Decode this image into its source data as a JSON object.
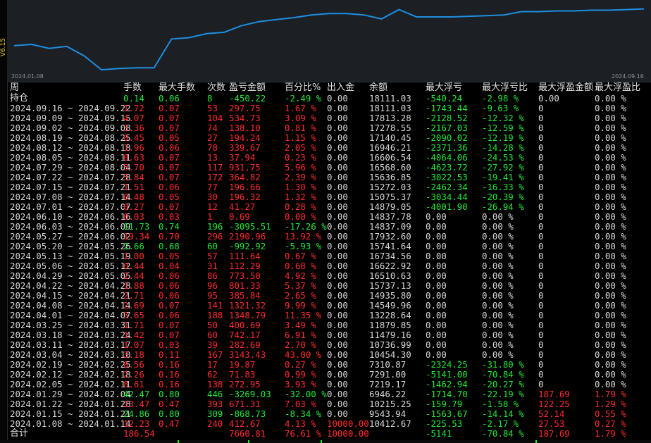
{
  "sidebar": {
    "label": "V6.15"
  },
  "chart": {
    "start_date": "2024.01.08",
    "end_date": "2024.09.16",
    "line_color": "#1e8fe0",
    "values": [
      0.38,
      0.4,
      0.34,
      0.37,
      0.23,
      0.02,
      0.04,
      0.05,
      0.05,
      0.48,
      0.5,
      0.56,
      0.58,
      0.68,
      0.74,
      0.77,
      0.8,
      0.84,
      0.86,
      0.86,
      0.84,
      0.78,
      0.92,
      0.81,
      0.81,
      0.81,
      0.82,
      0.83,
      0.84,
      0.89,
      0.89,
      0.9,
      0.9,
      0.91,
      0.91,
      0.92,
      0.93
    ]
  },
  "headers": [
    "周",
    "手数",
    "最大手数",
    "次数",
    "盈亏金额",
    "百分比%",
    "出入金",
    "余额",
    "最大浮亏",
    "最大浮亏比",
    "最大浮盈金额",
    "最大浮盈比"
  ],
  "holding": {
    "label": "持仓",
    "cells": [
      "0.14",
      "0.06",
      "8",
      "-450.22",
      "-2.49 %",
      "0.00",
      "18111.03",
      "-540.24",
      "-2.98 %",
      "0.00",
      "0.00 %"
    ],
    "colors": [
      "neg",
      "neg",
      "neg",
      "neg",
      "neg",
      "neu",
      "neu",
      "neg",
      "neg",
      "neu",
      "neu"
    ]
  },
  "rows": [
    {
      "week": "2024.09.16 ~ 2024.09.22",
      "cells": [
        "1.72",
        "0.07",
        "53",
        "297.75",
        "1.67 %",
        "0.00",
        "18111.03",
        "-1743.44",
        "-9.63 %",
        "0",
        "0.00 %"
      ],
      "tone": "pos",
      "ff": "neg"
    },
    {
      "week": "2024.09.09 ~ 2024.09.15",
      "cells": [
        "4.07",
        "0.07",
        "104",
        "534.73",
        "3.09 %",
        "0.00",
        "17813.28",
        "-2128.52",
        "-12.32 %",
        "0",
        "0.00 %"
      ],
      "tone": "pos",
      "ff": "neg"
    },
    {
      "week": "2024.09.02 ~ 2024.09.08",
      "cells": [
        "3.36",
        "0.07",
        "74",
        "138.10",
        "0.81 %",
        "0.00",
        "17278.55",
        "-2167.03",
        "-12.59 %",
        "0",
        "0.00 %"
      ],
      "tone": "pos",
      "ff": "neg"
    },
    {
      "week": "2024.08.19 ~ 2024.08.25",
      "cells": [
        "0.45",
        "0.05",
        "27",
        "194.24",
        "1.15 %",
        "0.00",
        "17140.45",
        "-2090.02",
        "-12.19 %",
        "0",
        "0.00 %"
      ],
      "tone": "pos",
      "ff": "neg"
    },
    {
      "week": "2024.08.12 ~ 2024.08.18",
      "cells": [
        "1.96",
        "0.06",
        "78",
        "339.67",
        "2.05 %",
        "0.00",
        "16946.21",
        "-2371.36",
        "-14.28 %",
        "0",
        "0.00 %"
      ],
      "tone": "pos",
      "ff": "neg"
    },
    {
      "week": "2024.08.05 ~ 2024.08.11",
      "cells": [
        "0.63",
        "0.07",
        "13",
        "37.94",
        "0.23 %",
        "0.00",
        "16606.54",
        "-4064.06",
        "-24.53 %",
        "0",
        "0.00 %"
      ],
      "tone": "pos",
      "ff": "neg"
    },
    {
      "week": "2024.07.29 ~ 2024.08.04",
      "cells": [
        "5.70",
        "0.07",
        "117",
        "931.75",
        "5.96 %",
        "0.00",
        "16568.60",
        "-4623.72",
        "-27.92 %",
        "0",
        "0.00 %"
      ],
      "tone": "pos",
      "ff": "neg"
    },
    {
      "week": "2024.07.22 ~ 2024.07.28",
      "cells": [
        "5.84",
        "0.07",
        "172",
        "364.82",
        "2.39 %",
        "0.00",
        "15636.85",
        "-3022.53",
        "-19.41 %",
        "0",
        "0.00 %"
      ],
      "tone": "pos",
      "ff": "neg"
    },
    {
      "week": "2024.07.15 ~ 2024.07.21",
      "cells": [
        "1.51",
        "0.06",
        "77",
        "196.66",
        "1.30 %",
        "0.00",
        "15272.03",
        "-2462.34",
        "-16.33 %",
        "0",
        "0.00 %"
      ],
      "tone": "pos",
      "ff": "neg"
    },
    {
      "week": "2024.07.08 ~ 2024.07.14",
      "cells": [
        "0.48",
        "0.05",
        "30",
        "196.32",
        "1.32 %",
        "0.00",
        "15075.37",
        "-3034.44",
        "-20.39 %",
        "0",
        "0.00 %"
      ],
      "tone": "pos",
      "ff": "neg"
    },
    {
      "week": "2024.07.01 ~ 2024.07.07",
      "cells": [
        "0.27",
        "0.07",
        "12",
        "41.27",
        "0.28 %",
        "0.00",
        "14879.05",
        "-4001.90",
        "-26.94 %",
        "0",
        "0.00 %"
      ],
      "tone": "pos",
      "ff": "neg"
    },
    {
      "week": "2024.06.10 ~ 2024.06.16",
      "cells": [
        "0.03",
        "0.03",
        "1",
        "0.69",
        "0.00 %",
        "0.00",
        "14837.78",
        "0.00",
        "0.00 %",
        "0",
        "0.00 %"
      ],
      "tone": "pos",
      "ff": "neu"
    },
    {
      "week": "2024.06.03 ~ 2024.06.09",
      "cells": [
        "11.73",
        "0.74",
        "196",
        "-3095.51",
        "-17.26 %",
        "0.00",
        "14837.09",
        "0.00",
        "0.00 %",
        "0",
        "0.00 %"
      ],
      "tone": "neg",
      "ff": "neu"
    },
    {
      "week": "2024.05.27 ~ 2024.06.02",
      "cells": [
        "19.34",
        "0.70",
        "296",
        "2190.96",
        "13.92 %",
        "0.00",
        "17932.60",
        "0.00",
        "0.00 %",
        "0",
        "0.00 %"
      ],
      "tone": "pos",
      "ff": "neu"
    },
    {
      "week": "2024.05.20 ~ 2024.05.26",
      "cells": [
        "2.66",
        "0.68",
        "60",
        "-992.92",
        "-5.93 %",
        "0.00",
        "15741.64",
        "0.00",
        "0.00 %",
        "0",
        "0.00 %"
      ],
      "tone": "neg",
      "ff": "neu"
    },
    {
      "week": "2024.05.13 ~ 2024.05.19",
      "cells": [
        "1.00",
        "0.05",
        "57",
        "111.64",
        "0.67 %",
        "0.00",
        "16734.56",
        "0.00",
        "0.00 %",
        "0",
        "0.00 %"
      ],
      "tone": "pos",
      "ff": "neu"
    },
    {
      "week": "2024.05.06 ~ 2024.05.12",
      "cells": [
        "0.44",
        "0.04",
        "31",
        "112.29",
        "0.68 %",
        "0.00",
        "16622.92",
        "0.00",
        "0.00 %",
        "0",
        "0.00 %"
      ],
      "tone": "pos",
      "ff": "neu"
    },
    {
      "week": "2024.04.29 ~ 2024.05.05",
      "cells": [
        "2.44",
        "0.06",
        "86",
        "773.50",
        "4.92 %",
        "0.00",
        "16510.63",
        "0.00",
        "0.00 %",
        "0",
        "0.00 %"
      ],
      "tone": "pos",
      "ff": "neu"
    },
    {
      "week": "2024.04.22 ~ 2024.04.28",
      "cells": [
        "1.88",
        "0.06",
        "96",
        "801.33",
        "5.37 %",
        "0.00",
        "15737.13",
        "0.00",
        "0.00 %",
        "0",
        "0.00 %"
      ],
      "tone": "pos",
      "ff": "neu"
    },
    {
      "week": "2024.04.15 ~ 2024.04.21",
      "cells": [
        "2.71",
        "0.06",
        "95",
        "385.84",
        "2.65 %",
        "0.00",
        "14935.80",
        "0.00",
        "0.00 %",
        "0",
        "0.00 %"
      ],
      "tone": "pos",
      "ff": "neu"
    },
    {
      "week": "2024.04.08 ~ 2024.04.14",
      "cells": [
        "2.69",
        "0.07",
        "141",
        "1321.32",
        "9.99 %",
        "0.00",
        "14549.96",
        "0.00",
        "0.00 %",
        "0",
        "0.00 %"
      ],
      "tone": "pos",
      "ff": "neu"
    },
    {
      "week": "2024.04.01 ~ 2024.04.07",
      "cells": [
        "3.65",
        "0.06",
        "188",
        "1348.79",
        "11.35 %",
        "0.00",
        "13228.64",
        "0.00",
        "0.00 %",
        "0",
        "0.00 %"
      ],
      "tone": "pos",
      "ff": "neu"
    },
    {
      "week": "2024.03.25 ~ 2024.03.31",
      "cells": [
        "1.71",
        "0.07",
        "50",
        "400.69",
        "3.49 %",
        "0.00",
        "11879.85",
        "0.00",
        "0.00 %",
        "0",
        "0.00 %"
      ],
      "tone": "pos",
      "ff": "neu"
    },
    {
      "week": "2024.03.18 ~ 2024.03.24",
      "cells": [
        "1.42",
        "0.07",
        "60",
        "742.17",
        "6.91 %",
        "0.00",
        "11479.16",
        "0.00",
        "0.00 %",
        "0",
        "0.00 %"
      ],
      "tone": "pos",
      "ff": "neu"
    },
    {
      "week": "2024.03.11 ~ 2024.03.17",
      "cells": [
        "1.07",
        "0.03",
        "39",
        "282.69",
        "2.70 %",
        "0.00",
        "10736.99",
        "0.00",
        "0.00 %",
        "0",
        "0.00 %"
      ],
      "tone": "pos",
      "ff": "neu"
    },
    {
      "week": "2024.03.04 ~ 2024.03.10",
      "cells": [
        "3.18",
        "0.11",
        "167",
        "3143.43",
        "43.00 %",
        "0.00",
        "10454.30",
        "0.00",
        "0.00 %",
        "0",
        "0.00 %"
      ],
      "tone": "pos",
      "ff": "neu"
    },
    {
      "week": "2024.02.19 ~ 2024.02.25",
      "cells": [
        "0.56",
        "0.16",
        "17",
        "19.87",
        "0.27 %",
        "0.00",
        "7310.87",
        "-2324.25",
        "-31.80 %",
        "0",
        "0.00 %"
      ],
      "tone": "pos",
      "ff": "neg"
    },
    {
      "week": "2024.02.12 ~ 2024.02.18",
      "cells": [
        "2.26",
        "0.16",
        "62",
        "71.83",
        "0.99 %",
        "0.00",
        "7291.00",
        "-5141.00",
        "-70.84 %",
        "0",
        "0.00 %"
      ],
      "tone": "pos",
      "ff": "neg"
    },
    {
      "week": "2024.02.05 ~ 2024.02.11",
      "cells": [
        "8.61",
        "0.16",
        "138",
        "272.95",
        "3.93 %",
        "0.00",
        "7219.17",
        "-1462.94",
        "-20.27 %",
        "0",
        "0.00 %"
      ],
      "tone": "pos",
      "ff": "neg"
    },
    {
      "week": "2024.01.29 ~ 2024.02.04",
      "cells": [
        "42.47",
        "0.80",
        "446",
        "-3269.03",
        "-32.00 %",
        "0.00",
        "6946.22",
        "-1714.70",
        "-22.19 %",
        "187.69",
        "1.79 %"
      ],
      "tone": "neg",
      "ff": "neg",
      "fp": "pos"
    },
    {
      "week": "2024.01.22 ~ 2024.01.28",
      "cells": [
        "13.47",
        "0.47",
        "393",
        "671.31",
        "7.03 %",
        "0.00",
        "10215.25",
        "-159.79",
        "-1.58 %",
        "122.25",
        "1.29 %"
      ],
      "tone": "pos",
      "ff": "neg",
      "fp": "pos"
    },
    {
      "week": "2024.01.15 ~ 2024.01.21",
      "cells": [
        "24.86",
        "0.80",
        "309",
        "-868.73",
        "-8.34 %",
        "0.00",
        "9543.94",
        "-1563.67",
        "-14.14 %",
        "52.14",
        "0.55 %"
      ],
      "tone": "neg",
      "ff": "neg",
      "fp": "pos"
    },
    {
      "week": "2024.01.08 ~ 2024.01.14",
      "cells": [
        "12.23",
        "0.47",
        "240",
        "412.67",
        "4.13 %",
        "10000.00",
        "10412.67",
        "-225.53",
        "-2.17 %",
        "27.53",
        "0.27 %"
      ],
      "tone": "pos",
      "ff": "neg",
      "fp": "pos",
      "io": "pos"
    }
  ],
  "total": {
    "label": "合计",
    "cells": [
      "186.54",
      "",
      "",
      "7660.81",
      "76.61 %",
      "10000.00",
      "",
      "-5141",
      "-70.84 %",
      "187.69",
      "1.79 %"
    ],
    "colors": [
      "pos",
      "neu",
      "neu",
      "pos",
      "pos",
      "pos",
      "neu",
      "neg",
      "neg",
      "pos",
      "pos"
    ]
  }
}
